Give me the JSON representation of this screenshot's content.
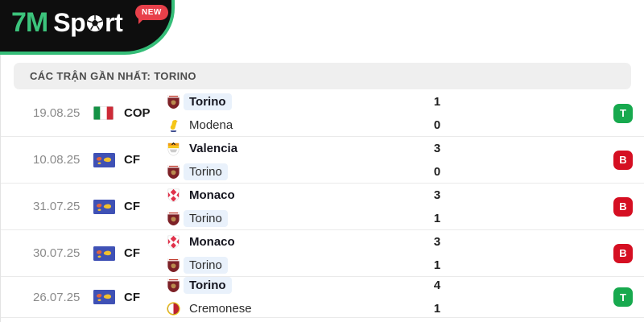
{
  "header": {
    "logo_7m": "7M",
    "logo_sport_pre": "Sp",
    "logo_sport_post": "rt",
    "new_badge": "NEW"
  },
  "section_title": "CÁC TRẬN GẦN NHẤT: TORINO",
  "colors": {
    "accent_green": "#35bd78",
    "win_badge": "#17a94e",
    "loss_badge": "#d50f22",
    "highlight_bg": "#e9f1fb",
    "new_badge_red": "#e8404a"
  },
  "matches": [
    {
      "date": "19.08.25",
      "competition": "COP",
      "competition_flag": "italy-flag",
      "home": {
        "name": "Torino",
        "logo": "torino-logo",
        "bold": true,
        "highlight": true,
        "score": "1"
      },
      "away": {
        "name": "Modena",
        "logo": "modena-logo",
        "bold": false,
        "highlight": false,
        "score": "0"
      },
      "result": "T"
    },
    {
      "date": "10.08.25",
      "competition": "CF",
      "competition_flag": "club-friendly-flag",
      "home": {
        "name": "Valencia",
        "logo": "valencia-logo",
        "bold": true,
        "highlight": false,
        "score": "3"
      },
      "away": {
        "name": "Torino",
        "logo": "torino-logo",
        "bold": false,
        "highlight": true,
        "score": "0"
      },
      "result": "B"
    },
    {
      "date": "31.07.25",
      "competition": "CF",
      "competition_flag": "club-friendly-flag",
      "home": {
        "name": "Monaco",
        "logo": "monaco-logo",
        "bold": true,
        "highlight": false,
        "score": "3"
      },
      "away": {
        "name": "Torino",
        "logo": "torino-logo",
        "bold": false,
        "highlight": true,
        "score": "1"
      },
      "result": "B"
    },
    {
      "date": "30.07.25",
      "competition": "CF",
      "competition_flag": "club-friendly-flag",
      "home": {
        "name": "Monaco",
        "logo": "monaco-logo",
        "bold": true,
        "highlight": false,
        "score": "3"
      },
      "away": {
        "name": "Torino",
        "logo": "torino-logo",
        "bold": false,
        "highlight": true,
        "score": "1"
      },
      "result": "B"
    },
    {
      "date": "26.07.25",
      "competition": "CF",
      "competition_flag": "club-friendly-flag",
      "home": {
        "name": "Torino",
        "logo": "torino-logo",
        "bold": true,
        "highlight": true,
        "score": "4"
      },
      "away": {
        "name": "Cremonese",
        "logo": "cremonese-logo",
        "bold": false,
        "highlight": false,
        "score": "1"
      },
      "result": "T"
    }
  ]
}
